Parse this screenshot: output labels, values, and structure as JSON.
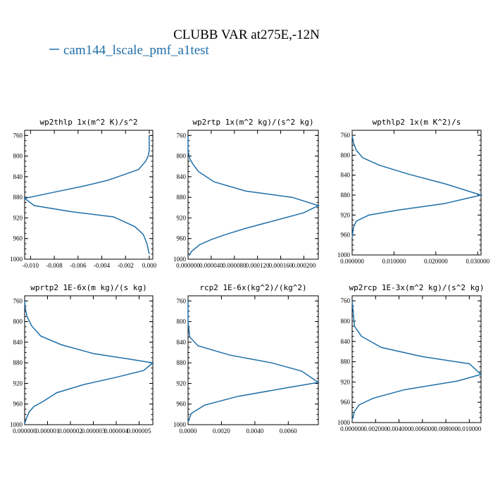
{
  "figure": {
    "title": "CLUBB VAR at275E,-12N",
    "legend": "cam144_lscale_pmf_a1test",
    "colors": {
      "series": "#1f6fa8"
    }
  },
  "chart_data": [
    {
      "type": "line",
      "title": "wp2thlp  1x(m^2 K)/s^2",
      "xlim": [
        -0.0105,
        0.0003
      ],
      "ylim": [
        1000,
        750
      ],
      "xticks": [
        -0.01,
        -0.008,
        -0.006,
        -0.004,
        -0.002,
        0.0
      ],
      "xtick_labels": [
        "-0.010",
        "-0.008",
        "-0.006",
        "-0.004",
        "-0.002",
        "0.000"
      ],
      "yticks": [
        760,
        800,
        840,
        880,
        920,
        960,
        1000
      ],
      "series": [
        {
          "x": [
            0.0,
            0.0,
            0.0,
            -0.0001,
            -0.0003,
            -0.0009,
            -0.002,
            -0.0035,
            -0.0055,
            -0.008,
            -0.0105,
            -0.0097,
            -0.0065,
            -0.003,
            -0.0012,
            -0.0005,
            -0.0002,
            0.0
          ],
          "y": [
            760,
            780,
            790,
            800,
            810,
            826,
            835,
            847,
            858,
            870,
            882,
            896,
            908,
            918,
            937,
            952,
            970,
            990
          ]
        }
      ]
    },
    {
      "type": "line",
      "title": "wp2rtp  1x(m^2 kg)/(s^2 kg)",
      "xlim": [
        0.0,
        0.000225
      ],
      "ylim": [
        1000,
        750
      ],
      "xticks": [
        0.0,
        4e-05,
        8e-05,
        0.00012,
        0.00016,
        0.0002
      ],
      "xtick_labels": [
        "0.000000",
        "0.000040",
        "0.000080",
        "0.000120",
        "0.000160",
        "0.000200"
      ],
      "yticks": [
        760,
        800,
        840,
        880,
        920,
        960,
        1000
      ],
      "series": [
        {
          "x": [
            0.0,
            0.0,
            3e-06,
            8e-06,
            1.8e-05,
            4.5e-05,
            0.0001,
            0.00018,
            0.000225,
            0.0002,
            0.00015,
            0.0001,
            6.5e-05,
            4e-05,
            2e-05,
            6e-06,
            2e-06
          ],
          "y": [
            760,
            790,
            805,
            815,
            830,
            850,
            868,
            880,
            896,
            910,
            925,
            940,
            952,
            962,
            972,
            985,
            993
          ]
        }
      ]
    },
    {
      "type": "line",
      "title": "wpthlp2  1x(m K^2)/s",
      "xlim": [
        0.0,
        0.0308
      ],
      "ylim": [
        1000,
        750
      ],
      "xticks": [
        0.0,
        0.01,
        0.02,
        0.03
      ],
      "xtick_labels": [
        "0.000000",
        "0.010000",
        "0.020000",
        "0.030000"
      ],
      "yticks": [
        760,
        800,
        840,
        880,
        920,
        960,
        1000
      ],
      "series": [
        {
          "x": [
            0.0,
            0.0003,
            0.001,
            0.0025,
            0.0065,
            0.0135,
            0.0225,
            0.0308,
            0.022,
            0.011,
            0.004,
            0.001,
            0.0003,
            0.0
          ],
          "y": [
            760,
            775,
            790,
            805,
            820,
            838,
            858,
            880,
            897,
            910,
            920,
            932,
            945,
            965
          ]
        }
      ]
    },
    {
      "type": "line",
      "title": "wprtp2  1E-6x(m kg)/(s kg)",
      "xlim": [
        0.0,
        5.6e-06
      ],
      "ylim": [
        1000,
        750
      ],
      "xticks": [
        0.0,
        1e-06,
        2e-06,
        3e-06,
        4e-06,
        5e-06
      ],
      "xtick_labels": [
        "0.000000",
        "0.000001",
        "0.000002",
        "0.000003",
        "0.000004",
        "0.000005"
      ],
      "yticks": [
        760,
        800,
        840,
        880,
        920,
        960,
        1000
      ],
      "series": [
        {
          "x": [
            0.0,
            3e-08,
            1e-07,
            3e-07,
            7e-07,
            1.6e-06,
            3e-06,
            4.6e-06,
            5.6e-06,
            5.2e-06,
            4e-06,
            2.6e-06,
            1.4e-06,
            8e-07,
            4e-07,
            2e-07,
            1e-07,
            0.0
          ],
          "y": [
            760,
            775,
            790,
            808,
            828,
            845,
            862,
            873,
            880,
            895,
            908,
            922,
            938,
            955,
            965,
            975,
            985,
            998
          ]
        }
      ]
    },
    {
      "type": "line",
      "title": "rcp2  1E-6x(kg^2)/(kg^2)",
      "xlim": [
        0.0,
        0.0078
      ],
      "ylim": [
        1000,
        750
      ],
      "xticks": [
        0.0,
        0.002,
        0.004,
        0.006
      ],
      "xtick_labels": [
        "0.0000",
        "0.0020",
        "0.0040",
        "0.0060"
      ],
      "yticks": [
        760,
        800,
        840,
        880,
        920,
        960,
        1000
      ],
      "series": [
        {
          "x": [
            0.0,
            0.0,
            0.0001,
            0.0006,
            0.0025,
            0.005,
            0.0068,
            0.0078,
            0.006,
            0.003,
            0.001,
            0.0002,
            0.0
          ],
          "y": [
            760,
            800,
            830,
            847,
            865,
            880,
            896,
            918,
            928,
            945,
            962,
            978,
            995
          ]
        }
      ]
    },
    {
      "type": "line",
      "title": "wp2rcp  1E-3x(m^2 kg)/(s^2 kg)",
      "xlim": [
        0.0,
        0.011
      ],
      "ylim": [
        1000,
        750
      ],
      "xticks": [
        0.0,
        0.002,
        0.004,
        0.006,
        0.008,
        0.01
      ],
      "xtick_labels": [
        "0.000000",
        "0.002000",
        "0.004000",
        "0.006000",
        "0.008000",
        "0.010000"
      ],
      "yticks": [
        760,
        800,
        840,
        880,
        920,
        960,
        1000
      ],
      "series": [
        {
          "x": [
            0.0,
            0.0002,
            0.0008,
            0.0025,
            0.006,
            0.01,
            0.011,
            0.009,
            0.0045,
            0.0018,
            0.0006,
            0.0002,
            0.0
          ],
          "y": [
            760,
            810,
            830,
            852,
            870,
            884,
            905,
            918,
            935,
            952,
            965,
            978,
            995
          ]
        }
      ]
    }
  ]
}
